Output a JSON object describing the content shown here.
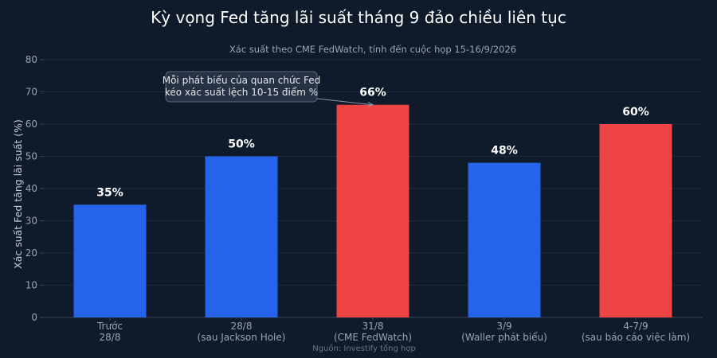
{
  "chart_data": {
    "type": "bar",
    "title": "Kỳ vọng Fed tăng lãi suất tháng 9 đảo chiều liên tục",
    "subtitle": "Xác suất theo CME FedWatch, tính đến cuộc họp 15-16/9/2026",
    "ylabel": "Xác suất Fed tăng lãi suất (%)",
    "xlabel": "",
    "ylim": [
      0,
      80
    ],
    "yticks": [
      0,
      10,
      20,
      30,
      40,
      50,
      60,
      70,
      80
    ],
    "grid": true,
    "categories": [
      [
        "Trước",
        "28/8"
      ],
      [
        "28/8",
        "(sau Jackson Hole)"
      ],
      [
        "31/8",
        "(CME FedWatch)"
      ],
      [
        "3/9",
        "(Waller phát biểu)"
      ],
      [
        "4-7/9",
        "(sau báo cáo việc làm)"
      ]
    ],
    "values": [
      35,
      50,
      66,
      48,
      60
    ],
    "value_labels": [
      "35%",
      "50%",
      "66%",
      "48%",
      "60%"
    ],
    "bar_colors": [
      "#2563eb",
      "#2563eb",
      "#ef4444",
      "#2563eb",
      "#ef4444"
    ],
    "annotation": {
      "lines": [
        "Mỗi phát biểu của quan chức Fed",
        "kéo xác suất lệch 10-15 điểm %"
      ],
      "target_index": 2
    },
    "source": "Nguồn: Investify tổng hợp"
  },
  "colors": {
    "background": "#0f1a2b",
    "blue": "#2563eb",
    "red": "#ef4444"
  }
}
